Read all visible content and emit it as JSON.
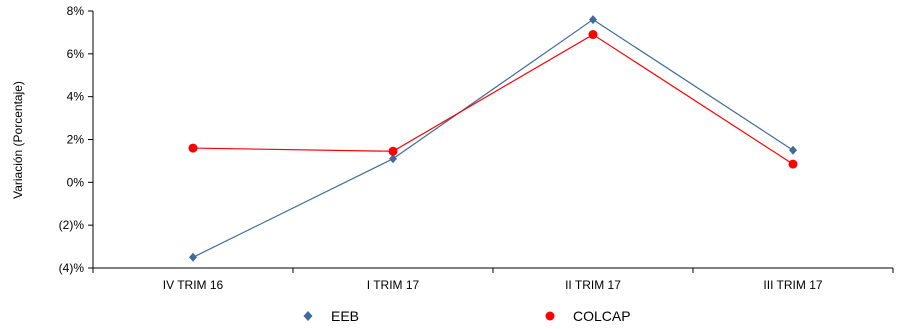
{
  "chart_data": {
    "type": "line",
    "categories": [
      "IV TRIM 16",
      "I TRIM 17",
      "II TRIM 17",
      "III TRIM 17"
    ],
    "series": [
      {
        "name": "EEB",
        "values": [
          -3.5,
          1.1,
          7.6,
          1.5
        ],
        "color": "#3f6b9a",
        "marker": "diamond"
      },
      {
        "name": "COLCAP",
        "values": [
          1.6,
          1.45,
          6.9,
          0.85
        ],
        "color": "#ff0000",
        "marker": "circle"
      }
    ],
    "yticks": [
      {
        "value": 8,
        "label": "8%"
      },
      {
        "value": 6,
        "label": "6%"
      },
      {
        "value": 4,
        "label": "4%"
      },
      {
        "value": 2,
        "label": "2%"
      },
      {
        "value": 0,
        "label": "0%"
      },
      {
        "value": -2,
        "label": "(2)%"
      },
      {
        "value": -4,
        "label": "(4)%"
      }
    ],
    "ylim": [
      -4,
      8
    ],
    "ylabel": "Variación (Porcentaje)",
    "xlabel": "",
    "title": "",
    "grid": false,
    "legend_position": "bottom"
  }
}
